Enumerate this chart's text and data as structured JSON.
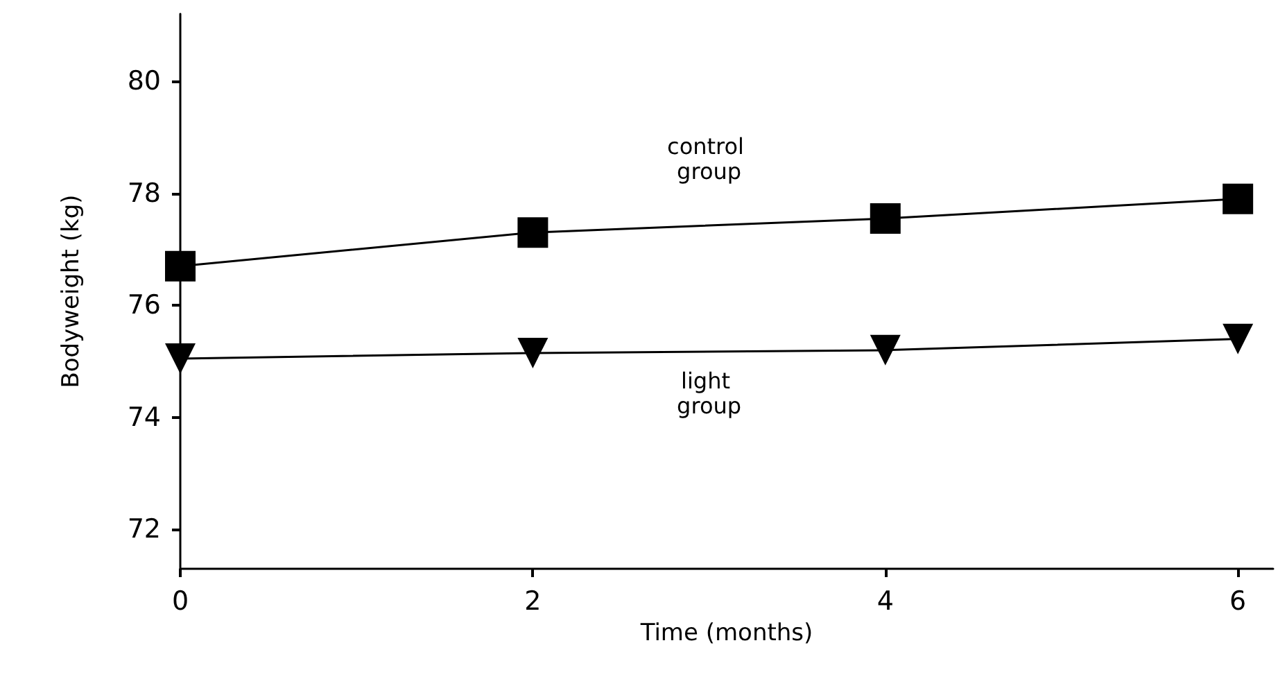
{
  "chart_data": {
    "type": "line",
    "xlabel": "Time (months)",
    "ylabel": "Bodyweight (kg)",
    "x": [
      0,
      2,
      4,
      6
    ],
    "xlim": [
      0,
      6.2
    ],
    "xticks": [
      0,
      2,
      4,
      6
    ],
    "ylim": [
      71.3,
      81.2
    ],
    "yticks": [
      72,
      74,
      76,
      78,
      80
    ],
    "grid": false,
    "legend": false,
    "line_style": "solid",
    "series": [
      {
        "name": "control group",
        "color": "#000000",
        "marker": "square",
        "values": [
          76.7,
          77.3,
          77.55,
          77.9
        ]
      },
      {
        "name": "light group",
        "color": "#000000",
        "marker": "triangle",
        "values": [
          75.05,
          75.15,
          75.2,
          75.4
        ]
      }
    ]
  }
}
